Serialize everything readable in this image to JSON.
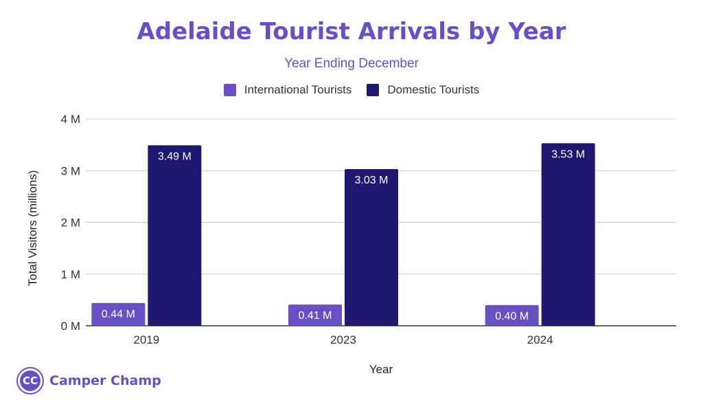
{
  "chart_data": {
    "type": "bar",
    "title": "Adelaide Tourist Arrivals by Year",
    "subtitle": "Year Ending December",
    "xlabel": "Year",
    "ylabel": "Total Visitors (millions)",
    "categories": [
      "2019",
      "2023",
      "2024"
    ],
    "series": [
      {
        "name": "International Tourists",
        "values": [
          0.44,
          0.41,
          0.4
        ],
        "labels": [
          "0.44 M",
          "0.41 M",
          "0.40 M"
        ],
        "color": "#6a4fc4"
      },
      {
        "name": "Domestic Tourists",
        "values": [
          3.49,
          3.03,
          3.53
        ],
        "labels": [
          "3.49 M",
          "3.03 M",
          "3.53 M"
        ],
        "color": "#1f1870"
      }
    ],
    "ylim": [
      0,
      4
    ],
    "yticks": [
      0,
      1,
      2,
      3,
      4
    ],
    "ytick_labels": [
      "0 M",
      "1 M",
      "2 M",
      "3 M",
      "4 M"
    ],
    "grid": true,
    "legend": "top"
  },
  "brand": {
    "logo_text": "CC",
    "name": "Camper Champ",
    "color": "#6a4fc4"
  }
}
